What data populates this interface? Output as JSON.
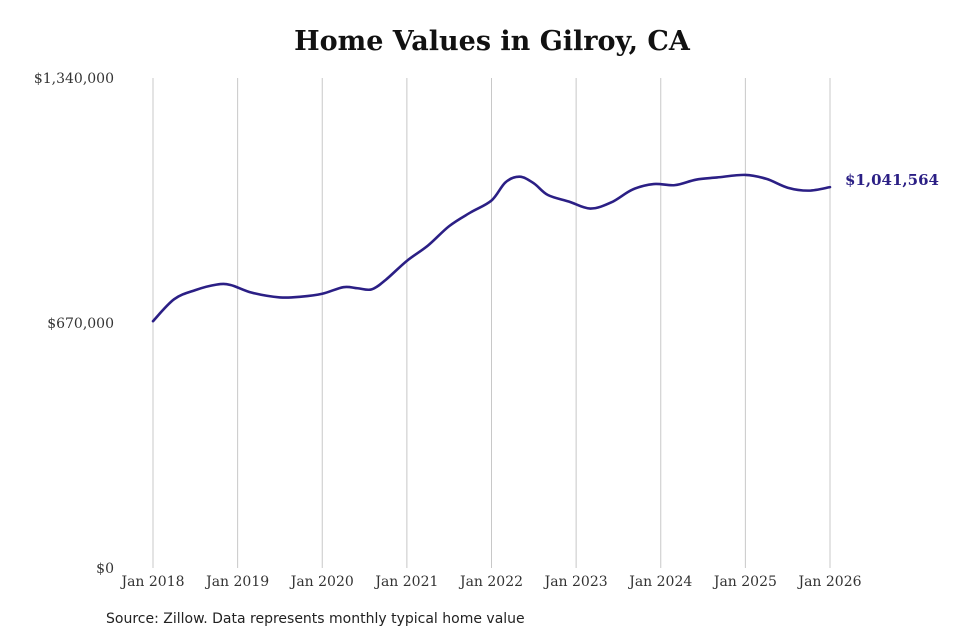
{
  "colors": {
    "line": "#2b1f85",
    "grid": "#c8c8c8",
    "text": "#333333"
  },
  "source": "Source: Zillow. Data represents monthly typical home value",
  "chart_data": {
    "type": "line",
    "title": "Home Values in Gilroy, CA",
    "xlabel": "",
    "ylabel": "",
    "ylim": [
      0,
      1340000
    ],
    "xlim": [
      "2018-01",
      "2026-01"
    ],
    "y_ticks": [
      {
        "value": 0,
        "label": "$0"
      },
      {
        "value": 670000,
        "label": "$670,000"
      },
      {
        "value": 1340000,
        "label": "$1,340,000"
      }
    ],
    "x_ticks": [
      {
        "value": "2018-01",
        "label": "Jan 2018"
      },
      {
        "value": "2019-01",
        "label": "Jan 2019"
      },
      {
        "value": "2020-01",
        "label": "Jan 2020"
      },
      {
        "value": "2021-01",
        "label": "Jan 2021"
      },
      {
        "value": "2022-01",
        "label": "Jan 2022"
      },
      {
        "value": "2023-01",
        "label": "Jan 2023"
      },
      {
        "value": "2024-01",
        "label": "Jan 2024"
      },
      {
        "value": "2025-01",
        "label": "Jan 2025"
      },
      {
        "value": "2026-01",
        "label": "Jan 2026"
      }
    ],
    "grid": {
      "vertical": true,
      "horizontal": false
    },
    "end_label": "$1,041,564",
    "series": [
      {
        "values": [
          {
            "x": "2018-01",
            "y": 675000
          },
          {
            "x": "2018-04",
            "y": 735000
          },
          {
            "x": "2018-07",
            "y": 760000
          },
          {
            "x": "2018-10",
            "y": 775000
          },
          {
            "x": "2018-12",
            "y": 774000
          },
          {
            "x": "2019-03",
            "y": 753000
          },
          {
            "x": "2019-07",
            "y": 740000
          },
          {
            "x": "2019-10",
            "y": 742000
          },
          {
            "x": "2020-01",
            "y": 750000
          },
          {
            "x": "2020-04",
            "y": 768000
          },
          {
            "x": "2020-06",
            "y": 765000
          },
          {
            "x": "2020-08",
            "y": 762000
          },
          {
            "x": "2020-10",
            "y": 788000
          },
          {
            "x": "2021-01",
            "y": 840000
          },
          {
            "x": "2021-04",
            "y": 882000
          },
          {
            "x": "2021-07",
            "y": 935000
          },
          {
            "x": "2021-10",
            "y": 972000
          },
          {
            "x": "2022-01",
            "y": 1005000
          },
          {
            "x": "2022-03",
            "y": 1055000
          },
          {
            "x": "2022-05",
            "y": 1070000
          },
          {
            "x": "2022-07",
            "y": 1052000
          },
          {
            "x": "2022-09",
            "y": 1020000
          },
          {
            "x": "2022-12",
            "y": 1002000
          },
          {
            "x": "2023-03",
            "y": 983000
          },
          {
            "x": "2023-06",
            "y": 1000000
          },
          {
            "x": "2023-09",
            "y": 1035000
          },
          {
            "x": "2023-12",
            "y": 1050000
          },
          {
            "x": "2024-03",
            "y": 1047000
          },
          {
            "x": "2024-06",
            "y": 1062000
          },
          {
            "x": "2024-09",
            "y": 1068000
          },
          {
            "x": "2025-01",
            "y": 1075000
          },
          {
            "x": "2025-04",
            "y": 1064000
          },
          {
            "x": "2025-07",
            "y": 1040000
          },
          {
            "x": "2025-10",
            "y": 1032000
          },
          {
            "x": "2026-01",
            "y": 1041564
          }
        ]
      }
    ]
  }
}
